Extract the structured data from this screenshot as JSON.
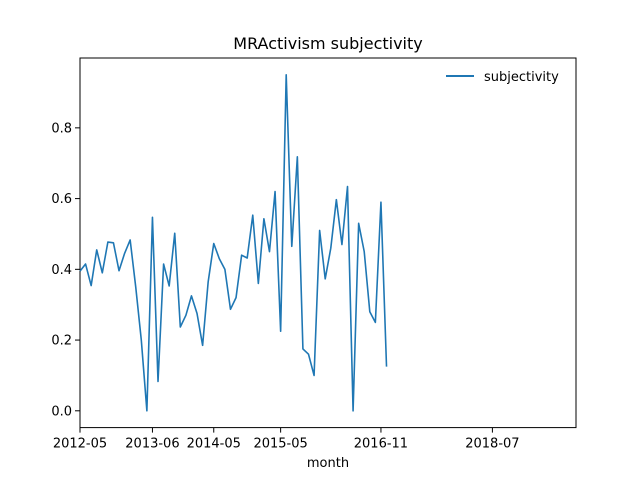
{
  "chart_data": {
    "type": "line",
    "title": "MRActivism subjectivity",
    "xlabel": "month",
    "ylabel": "",
    "x": [
      "2012-05",
      "2012-06",
      "2012-07",
      "2012-08",
      "2012-09",
      "2012-10",
      "2012-11",
      "2012-12",
      "2013-01",
      "2013-02",
      "2013-03",
      "2013-04",
      "2013-05",
      "2013-06",
      "2013-07",
      "2013-08",
      "2013-09",
      "2013-10",
      "2013-11",
      "2013-12",
      "2014-01",
      "2014-02",
      "2014-03",
      "2014-04",
      "2014-05",
      "2014-06",
      "2014-07",
      "2014-08",
      "2014-09",
      "2014-10",
      "2014-11",
      "2014-12",
      "2015-01",
      "2015-02",
      "2015-03",
      "2015-04",
      "2015-05",
      "2015-06",
      "2015-07",
      "2015-08",
      "2015-09",
      "2015-10",
      "2015-11",
      "2015-12",
      "2016-01",
      "2016-02",
      "2016-03",
      "2016-04",
      "2016-05",
      "2016-06",
      "2016-07",
      "2016-08",
      "2016-09",
      "2016-10",
      "2016-11",
      "2016-12",
      "2017-01",
      "2017-02",
      "2017-03",
      "2017-04",
      "2017-05",
      "2017-06",
      "2017-07",
      "2017-08",
      "2017-09",
      "2017-10",
      "2017-11",
      "2017-12",
      "2018-01",
      "2018-02",
      "2018-03",
      "2018-04",
      "2018-05",
      "2018-06",
      "2018-07",
      "2018-08",
      "2018-09",
      "2018-10",
      "2018-11",
      "2018-12",
      "2019-01",
      "2019-02",
      "2019-03",
      "2019-04",
      "2019-05",
      "2019-06",
      "2019-07",
      "2019-08",
      "2019-09",
      "2019-10"
    ],
    "series": [
      {
        "name": "subjectivity",
        "color": "#1f77b4",
        "points": [
          [
            "2012-05",
            0.395
          ],
          [
            "2012-06",
            0.415
          ],
          [
            "2012-07",
            0.354
          ],
          [
            "2012-08",
            0.455
          ],
          [
            "2012-09",
            0.39
          ],
          [
            "2012-10",
            0.477
          ],
          [
            "2012-11",
            0.475
          ],
          [
            "2012-12",
            0.396
          ],
          [
            "2013-01",
            0.445
          ],
          [
            "2013-02",
            0.483
          ],
          [
            "2013-03",
            0.35
          ],
          [
            "2013-04",
            0.2
          ],
          [
            "2013-05",
            0.0
          ],
          [
            "2013-06",
            0.547
          ],
          [
            "2013-07",
            0.083
          ],
          [
            "2013-08",
            0.415
          ],
          [
            "2013-09",
            0.353
          ],
          [
            "2013-10",
            0.502
          ],
          [
            "2013-11",
            0.237
          ],
          [
            "2013-12",
            0.27
          ],
          [
            "2014-01",
            0.325
          ],
          [
            "2014-02",
            0.275
          ],
          [
            "2014-03",
            0.185
          ],
          [
            "2014-04",
            0.365
          ],
          [
            "2014-05",
            0.473
          ],
          [
            "2014-06",
            0.43
          ],
          [
            "2014-07",
            0.4
          ],
          [
            "2014-08",
            0.287
          ],
          [
            "2014-09",
            0.32
          ],
          [
            "2014-10",
            0.44
          ],
          [
            "2014-11",
            0.432
          ],
          [
            "2014-12",
            0.553
          ],
          [
            "2015-01",
            0.36
          ],
          [
            "2015-02",
            0.543
          ],
          [
            "2015-03",
            0.45
          ],
          [
            "2015-04",
            0.62
          ],
          [
            "2015-05",
            0.225
          ],
          [
            "2015-06",
            0.95
          ],
          [
            "2015-07",
            0.465
          ],
          [
            "2015-08",
            0.718
          ],
          [
            "2015-09",
            0.175
          ],
          [
            "2015-10",
            0.16
          ],
          [
            "2015-11",
            0.1
          ],
          [
            "2015-12",
            0.51
          ],
          [
            "2016-01",
            0.373
          ],
          [
            "2016-02",
            0.46
          ],
          [
            "2016-03",
            0.597
          ],
          [
            "2016-04",
            0.47
          ],
          [
            "2016-05",
            0.634
          ],
          [
            "2016-06",
            0.0
          ],
          [
            "2016-07",
            0.53
          ],
          [
            "2016-08",
            0.45
          ],
          [
            "2016-09",
            0.28
          ],
          [
            "2016-10",
            0.25
          ],
          [
            "2016-11",
            0.59
          ],
          [
            "2016-12",
            0.125
          ]
        ]
      }
    ],
    "x_ticks": [
      "2012-05",
      "2013-06",
      "2014-05",
      "2015-05",
      "2016-11",
      "2018-07"
    ],
    "y_ticks": [
      "0.0",
      "0.2",
      "0.4",
      "0.6",
      "0.8"
    ],
    "ylim": [
      -0.0475,
      0.9975
    ],
    "legend_position": "top-right",
    "grid": false
  }
}
